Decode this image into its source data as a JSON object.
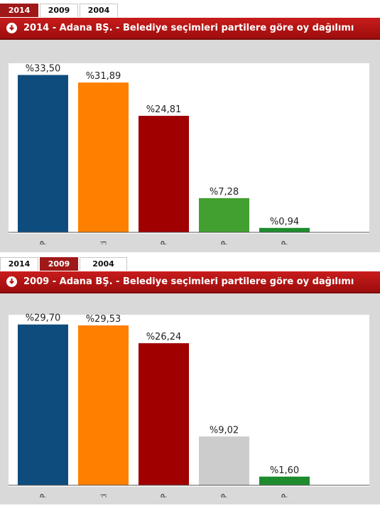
{
  "panels": [
    {
      "tabs": [
        {
          "label": "2014",
          "active": true
        },
        {
          "label": "2009",
          "active": false
        },
        {
          "label": "2004",
          "active": false
        }
      ],
      "title": "2014 - Adana BŞ. - Belediye seçimleri partilere göre oy dağılımı"
    },
    {
      "tabs": [
        {
          "label": "2014",
          "active": false
        },
        {
          "label": "2009",
          "active": true
        },
        {
          "label": "2004",
          "active": false
        }
      ],
      "title": "2009 - Adana BŞ. - Belediye seçimleri partilere göre oy dağılımı"
    }
  ],
  "colors": {
    "header": "#b81414",
    "MHP": "#0e4c7e",
    "AK Parti": "#ff7f00",
    "CHP": "#a00000",
    "HDP": "#41a030",
    "DTP": "#cccccc",
    "SP": "#1e8c2e"
  },
  "chart_data": [
    {
      "type": "bar",
      "categories": [
        "MHP",
        "AK Parti",
        "CHP",
        "HDP",
        "SP"
      ],
      "values": [
        33.5,
        31.89,
        24.81,
        7.28,
        0.94
      ],
      "value_labels": [
        "%33,50",
        "%31,89",
        "%24,81",
        "%7,28",
        "%0,94"
      ],
      "bar_colors": [
        "#0e4c7e",
        "#ff7f00",
        "#a00000",
        "#41a030",
        "#1e8c2e"
      ],
      "ylim": [
        0,
        36
      ]
    },
    {
      "type": "bar",
      "categories": [
        "MHP",
        "AK Parti",
        "CHP",
        "DTP",
        "SP"
      ],
      "values": [
        29.7,
        29.53,
        26.24,
        9.02,
        1.6
      ],
      "value_labels": [
        "%29,70",
        "%29,53",
        "%26,24",
        "%9,02",
        "%1,60"
      ],
      "bar_colors": [
        "#0e4c7e",
        "#ff7f00",
        "#a00000",
        "#cccccc",
        "#1e8c2e"
      ],
      "ylim": [
        0,
        31.5
      ]
    }
  ]
}
